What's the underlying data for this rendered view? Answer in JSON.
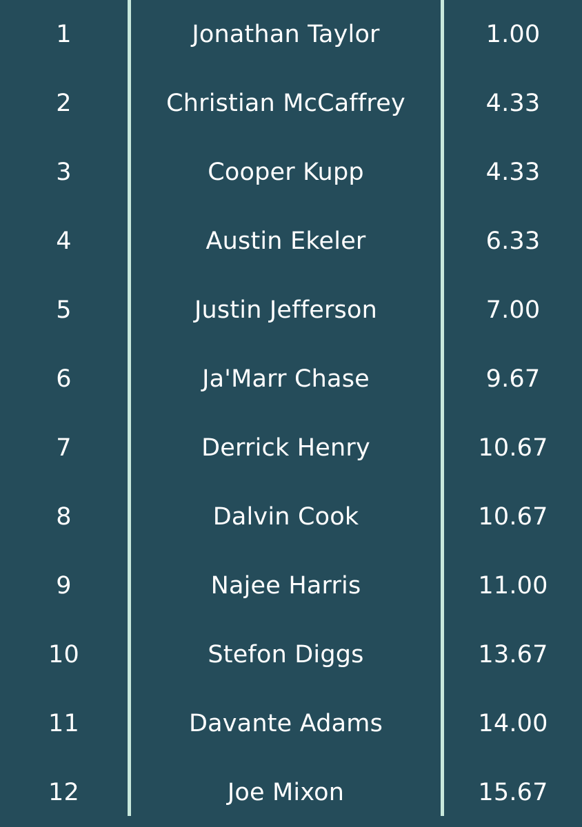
{
  "rows": [
    {
      "rank": "1",
      "name": "Jonathan Taylor",
      "value": "1.00"
    },
    {
      "rank": "2",
      "name": "Christian McCaffrey",
      "value": "4.33"
    },
    {
      "rank": "3",
      "name": "Cooper Kupp",
      "value": "4.33"
    },
    {
      "rank": "4",
      "name": "Austin Ekeler",
      "value": "6.33"
    },
    {
      "rank": "5",
      "name": "Justin Jefferson",
      "value": "7.00"
    },
    {
      "rank": "6",
      "name": "Ja'Marr Chase",
      "value": "9.67"
    },
    {
      "rank": "7",
      "name": "Derrick Henry",
      "value": "10.67"
    },
    {
      "rank": "8",
      "name": "Dalvin Cook",
      "value": "10.67"
    },
    {
      "rank": "9",
      "name": "Najee Harris",
      "value": "11.00"
    },
    {
      "rank": "10",
      "name": "Stefon Diggs",
      "value": "13.67"
    },
    {
      "rank": "11",
      "name": "Davante Adams",
      "value": "14.00"
    },
    {
      "rank": "12",
      "name": "Joe Mixon",
      "value": "15.67"
    }
  ],
  "colors": {
    "background": "#254c5a",
    "divider": "#c8e8dc",
    "text": "#ffffff"
  }
}
